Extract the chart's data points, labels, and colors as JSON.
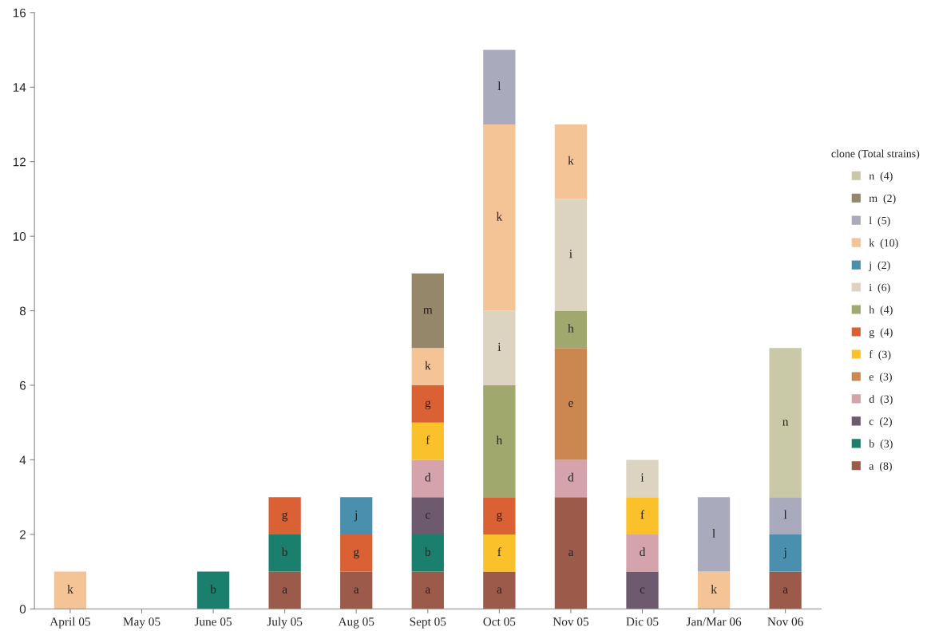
{
  "chart_data": {
    "type": "bar",
    "stacked": true,
    "categories": [
      "April 05",
      "May 05",
      "June 05",
      "July 05",
      "Aug 05",
      "Sept 05",
      "Oct 05",
      "Nov 05",
      "Dic 05",
      "Jan/Mar 06",
      "Nov 06"
    ],
    "ylim": [
      0,
      16
    ],
    "yticks": [
      0,
      2,
      4,
      6,
      8,
      10,
      12,
      14,
      16
    ],
    "grid": false,
    "legend": "right",
    "legend_title": "clone (Total strains)",
    "series": [
      {
        "name": "a  (8)",
        "color": "#9c5b4a",
        "values": [
          0,
          0,
          0,
          1,
          1,
          1,
          1,
          3,
          0,
          0,
          1
        ],
        "value_labels": [
          null,
          null,
          null,
          "a",
          "a",
          "a",
          "a",
          "a",
          null,
          null,
          "a"
        ]
      },
      {
        "name": "b  (3)",
        "color": "#1a7f6c",
        "values": [
          0,
          0,
          1,
          1,
          0,
          1,
          0,
          0,
          0,
          0,
          0
        ],
        "value_labels": [
          null,
          null,
          "b",
          "b",
          null,
          "b",
          null,
          null,
          null,
          null,
          null
        ]
      },
      {
        "name": "c  (2)",
        "color": "#6e5a6e",
        "values": [
          0,
          0,
          0,
          0,
          0,
          1,
          0,
          0,
          1,
          0,
          0
        ],
        "value_labels": [
          null,
          null,
          null,
          null,
          null,
          "c",
          null,
          null,
          "c",
          null,
          null
        ]
      },
      {
        "name": "d  (3)",
        "color": "#d4a3ac",
        "values": [
          0,
          0,
          0,
          0,
          0,
          1,
          0,
          1,
          1,
          0,
          0
        ],
        "value_labels": [
          null,
          null,
          null,
          null,
          null,
          "d",
          null,
          "d",
          "d",
          null,
          null
        ]
      },
      {
        "name": "e  (3)",
        "color": "#cc8750",
        "values": [
          0,
          0,
          0,
          0,
          0,
          0,
          0,
          3,
          0,
          0,
          0
        ],
        "value_labels": [
          null,
          null,
          null,
          null,
          null,
          null,
          null,
          "e",
          null,
          null,
          null
        ]
      },
      {
        "name": "f  (3)",
        "color": "#fbc12a",
        "values": [
          0,
          0,
          0,
          0,
          0,
          1,
          1,
          0,
          1,
          0,
          0
        ],
        "value_labels": [
          null,
          null,
          null,
          null,
          null,
          "f",
          "f",
          null,
          "f",
          null,
          null
        ]
      },
      {
        "name": "g  (4)",
        "color": "#d96134",
        "values": [
          0,
          0,
          0,
          1,
          1,
          1,
          1,
          0,
          0,
          0,
          0
        ],
        "value_labels": [
          null,
          null,
          null,
          "g",
          "g",
          "g",
          "g",
          null,
          null,
          null,
          null
        ]
      },
      {
        "name": "h  (4)",
        "color": "#a0a86e",
        "values": [
          0,
          0,
          0,
          0,
          0,
          0,
          3,
          1,
          0,
          0,
          0
        ],
        "value_labels": [
          null,
          null,
          null,
          null,
          null,
          null,
          "h",
          "h",
          null,
          null,
          null
        ]
      },
      {
        "name": "i  (6)",
        "color": "#ddd3c1",
        "values": [
          0,
          0,
          0,
          0,
          0,
          0,
          2,
          3,
          1,
          0,
          0
        ],
        "value_labels": [
          null,
          null,
          null,
          null,
          null,
          null,
          "i",
          "i",
          "i",
          null,
          null
        ]
      },
      {
        "name": "j  (2)",
        "color": "#4a8fae",
        "values": [
          0,
          0,
          0,
          0,
          1,
          0,
          0,
          0,
          0,
          0,
          1
        ],
        "value_labels": [
          null,
          null,
          null,
          null,
          "j",
          null,
          null,
          null,
          null,
          null,
          "j"
        ]
      },
      {
        "name": "k  (10)",
        "color": "#f4c396",
        "values": [
          1,
          0,
          0,
          0,
          0,
          1,
          5,
          2,
          0,
          1,
          0
        ],
        "value_labels": [
          "k",
          null,
          null,
          null,
          null,
          "k",
          "k",
          "k",
          null,
          "k",
          null
        ]
      },
      {
        "name": "l  (5)",
        "color": "#a9abbd",
        "values": [
          0,
          0,
          0,
          0,
          0,
          0,
          2,
          0,
          0,
          2,
          1
        ],
        "value_labels": [
          null,
          null,
          null,
          null,
          null,
          null,
          "l",
          null,
          null,
          "l",
          "l"
        ]
      },
      {
        "name": "m  (2)",
        "color": "#95876a",
        "values": [
          0,
          0,
          0,
          0,
          0,
          2,
          0,
          0,
          0,
          0,
          0
        ],
        "value_labels": [
          null,
          null,
          null,
          null,
          null,
          "m",
          null,
          null,
          null,
          null,
          null
        ]
      },
      {
        "name": "n  (4)",
        "color": "#c9c9a8",
        "values": [
          0,
          0,
          0,
          0,
          0,
          0,
          0,
          0,
          0,
          0,
          4
        ],
        "value_labels": [
          null,
          null,
          null,
          null,
          null,
          null,
          null,
          null,
          null,
          null,
          "n"
        ]
      }
    ]
  }
}
